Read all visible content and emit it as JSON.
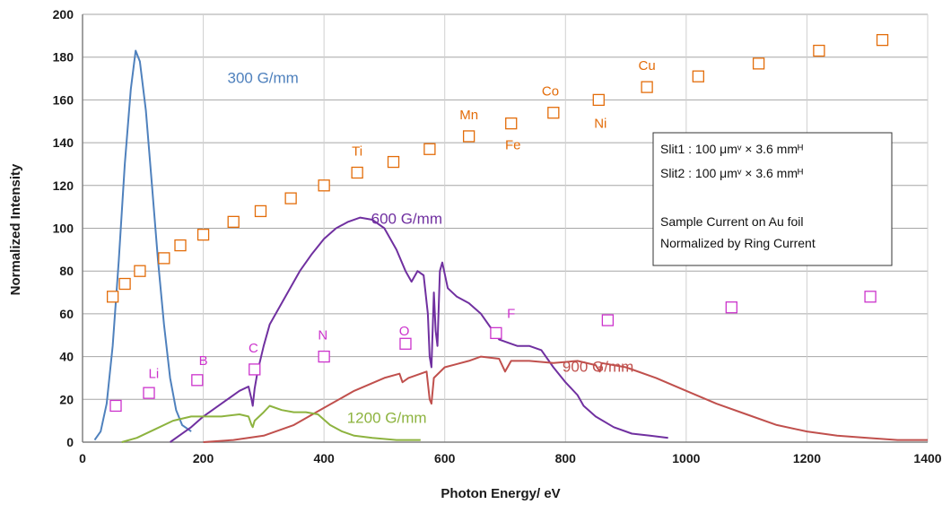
{
  "chart_data": {
    "type": "line",
    "xlabel": "Photon Energy/ eV",
    "ylabel": "Normalized Intensity",
    "xlim": [
      0,
      1400
    ],
    "ylim": [
      0,
      200
    ],
    "xticks": [
      0,
      200,
      400,
      600,
      800,
      1000,
      1200,
      1400
    ],
    "yticks": [
      0,
      20,
      40,
      60,
      80,
      100,
      120,
      140,
      160,
      180,
      200
    ],
    "grid": true,
    "series": [
      {
        "name": "300 G/mm",
        "color": "#4f81bd",
        "label_at": [
          240,
          168
        ],
        "points": [
          [
            20,
            1
          ],
          [
            30,
            5
          ],
          [
            40,
            18
          ],
          [
            50,
            45
          ],
          [
            60,
            85
          ],
          [
            70,
            130
          ],
          [
            80,
            165
          ],
          [
            88,
            183
          ],
          [
            95,
            178
          ],
          [
            105,
            155
          ],
          [
            115,
            120
          ],
          [
            125,
            85
          ],
          [
            135,
            55
          ],
          [
            145,
            30
          ],
          [
            155,
            15
          ],
          [
            165,
            8
          ],
          [
            175,
            6
          ],
          [
            180,
            5
          ]
        ]
      },
      {
        "name": "600 G/mm",
        "color": "#7030a0",
        "label_at": [
          478,
          102
        ],
        "points": [
          [
            145,
            0
          ],
          [
            160,
            3
          ],
          [
            180,
            7
          ],
          [
            200,
            12
          ],
          [
            230,
            18
          ],
          [
            260,
            24
          ],
          [
            275,
            26
          ],
          [
            280,
            20
          ],
          [
            282,
            17
          ],
          [
            285,
            25
          ],
          [
            290,
            33
          ],
          [
            300,
            45
          ],
          [
            310,
            55
          ],
          [
            330,
            65
          ],
          [
            360,
            80
          ],
          [
            380,
            88
          ],
          [
            400,
            95
          ],
          [
            420,
            100
          ],
          [
            440,
            103
          ],
          [
            460,
            105
          ],
          [
            480,
            104
          ],
          [
            500,
            100
          ],
          [
            520,
            90
          ],
          [
            535,
            80
          ],
          [
            545,
            75
          ],
          [
            555,
            80
          ],
          [
            565,
            78
          ],
          [
            572,
            60
          ],
          [
            575,
            40
          ],
          [
            578,
            35
          ],
          [
            582,
            70
          ],
          [
            585,
            52
          ],
          [
            588,
            45
          ],
          [
            592,
            80
          ],
          [
            596,
            84
          ],
          [
            605,
            72
          ],
          [
            620,
            68
          ],
          [
            640,
            65
          ],
          [
            660,
            60
          ],
          [
            680,
            52
          ],
          [
            690,
            48
          ],
          [
            700,
            47
          ],
          [
            710,
            46
          ],
          [
            720,
            45
          ],
          [
            740,
            45
          ],
          [
            760,
            43
          ],
          [
            780,
            35
          ],
          [
            800,
            28
          ],
          [
            820,
            22
          ],
          [
            830,
            17
          ],
          [
            850,
            12
          ],
          [
            880,
            7
          ],
          [
            910,
            4
          ],
          [
            940,
            3
          ],
          [
            970,
            2
          ]
        ]
      },
      {
        "name": "900 G/mm",
        "color": "#c0504d",
        "label_at": [
          795,
          33
        ],
        "points": [
          [
            200,
            0
          ],
          [
            250,
            1
          ],
          [
            300,
            3
          ],
          [
            350,
            8
          ],
          [
            400,
            16
          ],
          [
            450,
            24
          ],
          [
            500,
            30
          ],
          [
            525,
            32
          ],
          [
            530,
            28
          ],
          [
            540,
            30
          ],
          [
            560,
            32
          ],
          [
            570,
            33
          ],
          [
            575,
            20
          ],
          [
            578,
            18
          ],
          [
            582,
            30
          ],
          [
            600,
            35
          ],
          [
            640,
            38
          ],
          [
            660,
            40
          ],
          [
            690,
            39
          ],
          [
            700,
            33
          ],
          [
            710,
            38
          ],
          [
            740,
            38
          ],
          [
            780,
            37
          ],
          [
            820,
            38
          ],
          [
            850,
            36
          ],
          [
            857,
            33
          ],
          [
            860,
            37
          ],
          [
            900,
            35
          ],
          [
            950,
            30
          ],
          [
            1000,
            24
          ],
          [
            1050,
            18
          ],
          [
            1100,
            13
          ],
          [
            1150,
            8
          ],
          [
            1200,
            5
          ],
          [
            1250,
            3
          ],
          [
            1300,
            2
          ],
          [
            1350,
            1
          ],
          [
            1400,
            1
          ]
        ]
      },
      {
        "name": "1200 G/mm",
        "color": "#8db33f",
        "label_at": [
          438,
          9
        ],
        "points": [
          [
            65,
            0
          ],
          [
            90,
            2
          ],
          [
            120,
            6
          ],
          [
            150,
            10
          ],
          [
            180,
            12
          ],
          [
            200,
            12
          ],
          [
            230,
            12
          ],
          [
            260,
            13
          ],
          [
            275,
            12
          ],
          [
            280,
            8
          ],
          [
            282,
            7
          ],
          [
            285,
            10
          ],
          [
            300,
            14
          ],
          [
            310,
            17
          ],
          [
            330,
            15
          ],
          [
            350,
            14
          ],
          [
            370,
            14
          ],
          [
            390,
            13
          ],
          [
            410,
            8
          ],
          [
            430,
            5
          ],
          [
            450,
            3
          ],
          [
            480,
            2
          ],
          [
            520,
            1
          ],
          [
            560,
            1
          ]
        ]
      }
    ],
    "markers_orange": {
      "color": "#e36c09",
      "points": [
        [
          50,
          68
        ],
        [
          70,
          74
        ],
        [
          95,
          80
        ],
        [
          135,
          86
        ],
        [
          162,
          92
        ],
        [
          200,
          97
        ],
        [
          250,
          103
        ],
        [
          295,
          108
        ],
        [
          345,
          114
        ],
        [
          400,
          120
        ],
        [
          455,
          126
        ],
        [
          515,
          131
        ],
        [
          575,
          137
        ],
        [
          640,
          143
        ],
        [
          710,
          149
        ],
        [
          780,
          154
        ],
        [
          855,
          160
        ],
        [
          935,
          166
        ],
        [
          1020,
          171
        ],
        [
          1120,
          177
        ],
        [
          1220,
          183
        ],
        [
          1325,
          188
        ]
      ],
      "labels": [
        {
          "text": "Ti",
          "x": 455,
          "y": 134
        },
        {
          "text": "Mn",
          "x": 640,
          "y": 151
        },
        {
          "text": "Fe",
          "x": 713,
          "y": 137
        },
        {
          "text": "Co",
          "x": 775,
          "y": 162
        },
        {
          "text": "Ni",
          "x": 858,
          "y": 147
        },
        {
          "text": "Cu",
          "x": 935,
          "y": 174
        }
      ]
    },
    "markers_magenta": {
      "color": "#cc33cc",
      "points": [
        [
          55,
          17
        ],
        [
          110,
          23
        ],
        [
          190,
          29
        ],
        [
          285,
          34
        ],
        [
          400,
          40
        ],
        [
          535,
          46
        ],
        [
          685,
          51
        ],
        [
          870,
          57
        ],
        [
          1075,
          63
        ],
        [
          1305,
          68
        ]
      ],
      "labels": [
        {
          "text": "Li",
          "x": 118,
          "y": 30
        },
        {
          "text": "B",
          "x": 200,
          "y": 36
        },
        {
          "text": "C",
          "x": 283,
          "y": 42
        },
        {
          "text": "N",
          "x": 398,
          "y": 48
        },
        {
          "text": "O",
          "x": 533,
          "y": 50
        },
        {
          "text": "F",
          "x": 710,
          "y": 58
        }
      ]
    },
    "annotation": {
      "lines": [
        "Slit1 : 100 μmᵛ × 3.6 mmᴴ",
        "Slit2 : 100 μmᵛ × 3.6 mmᴴ",
        "",
        "Sample Current on Au foil",
        "Normalized by Ring Current"
      ]
    }
  }
}
